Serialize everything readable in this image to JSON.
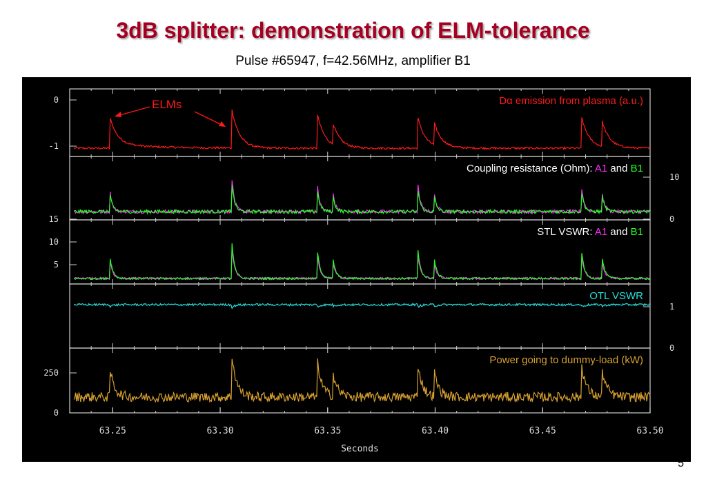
{
  "slide": {
    "title": "3dB splitter: demonstration of ELM-tolerance",
    "subtitle": "Pulse #65947, f=42.56MHz, amplifier B1",
    "page_number": "5"
  },
  "colors": {
    "title": "#a50021",
    "background_plot": "#000000",
    "frame": "#d0d0d0",
    "d_alpha": "#ff1a1a",
    "a1": "#ff2cff",
    "b1": "#22ff22",
    "otl": "#28e0e0",
    "power": "#d8a030"
  },
  "chart_data": {
    "type": "line",
    "xlabel": "Seconds",
    "xlim": [
      63.23,
      63.5
    ],
    "x_ticks": [
      "63.25",
      "63.30",
      "63.35",
      "63.40",
      "63.45",
      "63.50"
    ],
    "elm_times": [
      63.2485,
      63.3055,
      63.345,
      63.3525,
      63.392,
      63.3995,
      63.468,
      63.4775
    ],
    "annotation": "ELMs",
    "panels": [
      {
        "id": "d_alpha",
        "title_parts": [
          {
            "text": "D",
            "color": "#ff1a1a"
          },
          {
            "text": "α",
            "color": "#ff1a1a"
          },
          {
            "text": " emission from plasma (a.u.)",
            "color": "#ff1a1a"
          }
        ],
        "left_ticks": [
          "0",
          "-1"
        ],
        "right_ticks": [],
        "series": [
          {
            "name": "Dα",
            "color": "#ff1a1a"
          }
        ]
      },
      {
        "id": "coupling",
        "title_parts": [
          {
            "text": "Coupling resistance (Ohm): ",
            "color": "#ffffff"
          },
          {
            "text": "A1",
            "color": "#ff2cff"
          },
          {
            "text": " and ",
            "color": "#ffffff"
          },
          {
            "text": "B1",
            "color": "#22ff22"
          }
        ],
        "left_ticks": [
          "15"
        ],
        "right_ticks": [
          "10",
          "0"
        ],
        "series": [
          {
            "name": "A1",
            "color": "#ff2cff"
          },
          {
            "name": "B1",
            "color": "#22ff22"
          }
        ]
      },
      {
        "id": "stl",
        "title_parts": [
          {
            "text": "STL VSWR: ",
            "color": "#ffffff"
          },
          {
            "text": "A1",
            "color": "#ff2cff"
          },
          {
            "text": " and ",
            "color": "#ffffff"
          },
          {
            "text": "B1",
            "color": "#22ff22"
          }
        ],
        "left_ticks": [
          "10",
          "5"
        ],
        "right_ticks": [],
        "series": [
          {
            "name": "A1",
            "color": "#ff2cff"
          },
          {
            "name": "B1",
            "color": "#22ff22"
          }
        ]
      },
      {
        "id": "otl",
        "title_parts": [
          {
            "text": "OTL VSWR",
            "color": "#28e0e0"
          }
        ],
        "left_ticks": [],
        "right_ticks": [
          "1",
          "0"
        ],
        "series": [
          {
            "name": "OTL VSWR",
            "color": "#28e0e0"
          }
        ]
      },
      {
        "id": "power",
        "title_parts": [
          {
            "text": "Power going to dummy-load (kW)",
            "color": "#d8a030"
          }
        ],
        "left_ticks": [
          "250",
          "0"
        ],
        "right_ticks": [],
        "series": [
          {
            "name": "Power",
            "color": "#d8a030"
          }
        ]
      }
    ]
  }
}
